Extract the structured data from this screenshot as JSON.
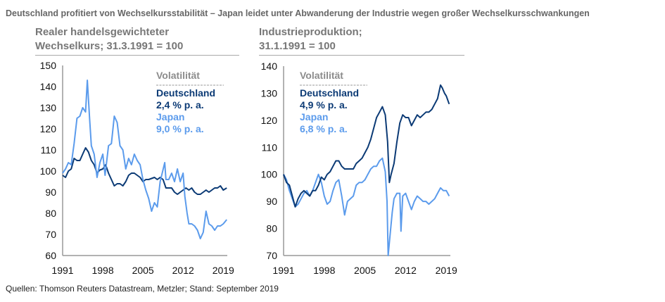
{
  "title": "Deutschland profitiert von Wechselkursstabilität – Japan leidet unter Abwanderung der Industrie wegen großer Wechselkursschwankungen",
  "source": "Quellen: Thomson Reuters Datastream, Metzler; Stand: September 2019",
  "colors": {
    "Deutschland": "#0b3a75",
    "Japan": "#5b9bec",
    "axis": "#999999",
    "legend_header": "#8c8c8c"
  },
  "chart_data": [
    {
      "type": "line",
      "title": "Realer handelsgewichteter\nWechselkurs; 31.3.1991 = 100",
      "xlim": [
        1991,
        2019.7
      ],
      "ylim": [
        60,
        150
      ],
      "xticks": [
        "1991",
        "1998",
        "2005",
        "2012",
        "2019"
      ],
      "yticks": [
        "60",
        "70",
        "80",
        "90",
        "100",
        "110",
        "120",
        "130",
        "140",
        "150"
      ],
      "grid": false,
      "legend": {
        "header": "Volatilität",
        "placement": "top-right",
        "entries": [
          {
            "name": "Deutschland",
            "value": "2,4 % p. a."
          },
          {
            "name": "Japan",
            "value": "9,0 % p. a."
          }
        ]
      },
      "series": [
        {
          "name": "Deutschland",
          "x": [
            1991,
            1991.5,
            1992,
            1992.5,
            1993,
            1993.5,
            1994,
            1994.5,
            1995,
            1995.5,
            1996,
            1996.5,
            1997,
            1997.5,
            1998,
            1998.5,
            1999,
            1999.5,
            2000,
            2000.5,
            2001,
            2001.5,
            2002,
            2002.5,
            2003,
            2003.5,
            2004,
            2004.5,
            2005,
            2005.5,
            2006,
            2006.5,
            2007,
            2007.5,
            2008,
            2008.5,
            2009,
            2009.5,
            2010,
            2010.5,
            2011,
            2011.5,
            2012,
            2012.5,
            2013,
            2013.5,
            2014,
            2014.5,
            2015,
            2015.5,
            2016,
            2016.5,
            2017,
            2017.5,
            2018,
            2018.5,
            2019,
            2019.6
          ],
          "y": [
            98,
            97,
            100,
            101,
            106,
            105,
            105,
            108,
            111,
            109,
            105,
            103,
            99,
            100.5,
            101,
            103,
            99,
            96,
            93,
            94,
            94,
            93,
            95,
            98,
            99,
            99,
            98,
            97,
            95,
            96,
            96,
            96.5,
            97,
            96,
            97,
            96,
            92,
            92,
            92,
            90,
            89,
            90,
            91,
            92,
            91,
            92,
            90,
            89,
            89,
            90,
            91,
            90,
            91,
            92,
            92,
            93,
            91,
            92
          ]
        },
        {
          "name": "Japan",
          "x": [
            1991,
            1991.5,
            1992,
            1992.5,
            1993,
            1993.5,
            1994,
            1994.5,
            1995,
            1995.3,
            1995.7,
            1996,
            1996.5,
            1997,
            1997.5,
            1998,
            1998.4,
            1999,
            1999.5,
            2000,
            2000.5,
            2001,
            2001.5,
            2002,
            2002.5,
            2003,
            2003.5,
            2004,
            2004.5,
            2005,
            2005.5,
            2006,
            2006.5,
            2007,
            2007.5,
            2008,
            2008.8,
            2009,
            2009.5,
            2010,
            2010.5,
            2011,
            2011.5,
            2012,
            2012.3,
            2012.7,
            2013,
            2013.5,
            2014,
            2014.5,
            2015,
            2015.5,
            2016,
            2016.5,
            2017,
            2017.5,
            2018,
            2018.5,
            2019,
            2019.6
          ],
          "y": [
            99,
            101,
            104,
            103,
            113,
            125,
            126,
            130,
            128,
            143,
            125,
            112,
            108,
            97,
            104,
            108,
            98,
            112,
            113,
            126,
            123,
            112,
            110,
            101,
            106,
            103,
            108,
            105,
            103,
            96,
            91,
            87,
            81,
            85,
            83,
            95,
            104,
            96,
            96,
            99,
            95,
            101,
            95,
            99,
            88,
            80,
            75,
            75,
            74,
            72,
            68,
            71,
            81,
            75,
            74,
            72,
            74,
            74,
            75,
            77
          ]
        }
      ]
    },
    {
      "type": "line",
      "title": "Industrieproduktion;\n31.1.1991 = 100",
      "xlim": [
        1991,
        2019.7
      ],
      "ylim": [
        70,
        140
      ],
      "xticks": [
        "1991",
        "1998",
        "2005",
        "2012",
        "2019"
      ],
      "yticks": [
        "70",
        "80",
        "90",
        "100",
        "110",
        "120",
        "130",
        "140"
      ],
      "grid": false,
      "legend": {
        "header": "Volatilität",
        "placement": "top-left",
        "entries": [
          {
            "name": "Deutschland",
            "value": "4,9 % p. a."
          },
          {
            "name": "Japan",
            "value": "6,8 % p. a."
          }
        ]
      },
      "series": [
        {
          "name": "Deutschland",
          "x": [
            1991,
            1991.5,
            1992,
            1992.5,
            1993,
            1993.5,
            1994,
            1994.5,
            1995,
            1995.5,
            1996,
            1996.5,
            1997,
            1997.5,
            1998,
            1998.5,
            1999,
            1999.5,
            2000,
            2000.5,
            2001,
            2001.5,
            2002,
            2002.5,
            2003,
            2003.5,
            2004,
            2004.5,
            2005,
            2005.5,
            2006,
            2006.5,
            2007,
            2007.5,
            2008,
            2008.5,
            2008.9,
            2009.2,
            2009.5,
            2010,
            2010.5,
            2011,
            2011.5,
            2012,
            2012.5,
            2013,
            2013.5,
            2014,
            2014.5,
            2015,
            2015.5,
            2016,
            2016.5,
            2017,
            2017.5,
            2018,
            2018.3,
            2018.7,
            2019,
            2019.5
          ],
          "y": [
            100,
            97,
            96,
            92,
            88,
            91,
            93,
            94,
            93,
            92,
            94,
            94,
            96,
            99,
            98,
            100,
            101,
            103,
            105,
            105,
            103,
            102,
            102,
            102,
            102,
            104,
            105,
            106,
            108,
            110,
            113,
            117,
            121,
            123,
            125,
            122,
            112,
            97,
            100,
            104,
            112,
            119,
            122,
            121,
            121,
            118,
            120,
            122,
            121,
            122,
            123,
            123,
            124,
            126,
            128,
            133,
            132,
            130,
            129,
            126
          ]
        },
        {
          "name": "Japan",
          "x": [
            1991,
            1991.5,
            1992,
            1992.5,
            1993,
            1993.5,
            1994,
            1994.5,
            1995,
            1995.5,
            1996,
            1996.5,
            1997,
            1997.5,
            1998,
            1998.5,
            1999,
            1999.5,
            2000,
            2000.5,
            2001,
            2001.5,
            2002,
            2002.5,
            2003,
            2003.5,
            2004,
            2004.5,
            2005,
            2005.5,
            2006,
            2006.5,
            2007,
            2007.5,
            2008,
            2008.5,
            2008.8,
            2009,
            2009.3,
            2009.7,
            2010,
            2010.5,
            2011,
            2011.2,
            2011.5,
            2012,
            2012.5,
            2013,
            2013.5,
            2014,
            2014.5,
            2015,
            2015.5,
            2016,
            2016.5,
            2017,
            2017.5,
            2018,
            2018.5,
            2019,
            2019.5
          ],
          "y": [
            100,
            98,
            94,
            91,
            88,
            89,
            91,
            93,
            94,
            92,
            94,
            97,
            100,
            97,
            92,
            89,
            90,
            94,
            97,
            98,
            92,
            85,
            90,
            91,
            92,
            96,
            97,
            97,
            98,
            100,
            102,
            103,
            103,
            105,
            106,
            101,
            90,
            70,
            77,
            86,
            91,
            93,
            93,
            79,
            92,
            93,
            90,
            87,
            90,
            92,
            91,
            90,
            90,
            89,
            90,
            91,
            93,
            95,
            94,
            94,
            92
          ]
        }
      ]
    }
  ]
}
